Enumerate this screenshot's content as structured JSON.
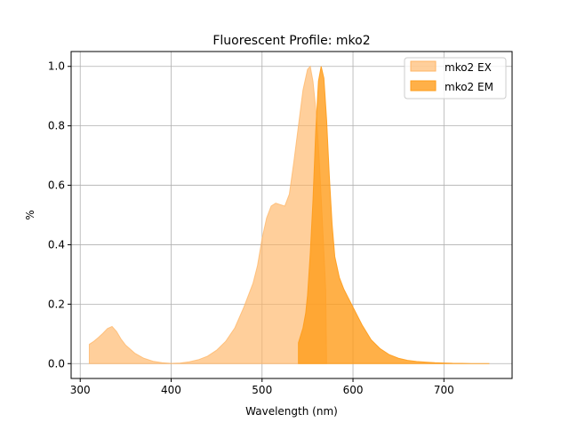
{
  "chart_data": {
    "type": "area",
    "title": "Fluorescent Profile: mko2",
    "xlabel": "Wavelength (nm)",
    "ylabel": "%",
    "xlim": [
      290,
      775
    ],
    "ylim": [
      -0.05,
      1.05
    ],
    "xticks": [
      300,
      400,
      500,
      600,
      700
    ],
    "yticks": [
      0.0,
      0.2,
      0.4,
      0.6,
      0.8,
      1.0
    ],
    "grid": true,
    "legend_position": "top-right",
    "series": [
      {
        "name": "mko2 EX",
        "color": "#ffb566",
        "opacity": 0.65,
        "x": [
          310,
          315,
          320,
          325,
          330,
          335,
          340,
          345,
          350,
          360,
          370,
          380,
          390,
          400,
          410,
          420,
          430,
          440,
          450,
          460,
          470,
          480,
          490,
          495,
          500,
          505,
          510,
          515,
          520,
          525,
          530,
          535,
          540,
          545,
          550,
          553,
          556,
          560,
          563,
          566,
          570,
          571
        ],
        "y": [
          0.065,
          0.075,
          0.088,
          0.102,
          0.118,
          0.125,
          0.108,
          0.082,
          0.062,
          0.035,
          0.018,
          0.008,
          0.003,
          0.001,
          0.002,
          0.006,
          0.013,
          0.025,
          0.045,
          0.075,
          0.12,
          0.19,
          0.27,
          0.33,
          0.42,
          0.49,
          0.53,
          0.54,
          0.535,
          0.53,
          0.57,
          0.68,
          0.8,
          0.92,
          0.99,
          1.0,
          0.95,
          0.83,
          0.68,
          0.5,
          0.25,
          0.0
        ]
      },
      {
        "name": "mko2 EM",
        "color": "#ff9c1a",
        "opacity": 0.8,
        "x": [
          540,
          542,
          545,
          548,
          550,
          553,
          556,
          559,
          562,
          565,
          568,
          571,
          574,
          577,
          580,
          585,
          590,
          595,
          600,
          610,
          620,
          630,
          640,
          650,
          660,
          670,
          680,
          690,
          700,
          710,
          720,
          730,
          740,
          750
        ],
        "y": [
          0.07,
          0.09,
          0.12,
          0.17,
          0.23,
          0.37,
          0.55,
          0.78,
          0.95,
          1.0,
          0.96,
          0.82,
          0.63,
          0.47,
          0.36,
          0.29,
          0.25,
          0.22,
          0.19,
          0.13,
          0.08,
          0.05,
          0.03,
          0.018,
          0.011,
          0.007,
          0.005,
          0.003,
          0.002,
          0.001,
          0.001,
          0.0,
          0.0,
          0.0
        ]
      }
    ]
  }
}
